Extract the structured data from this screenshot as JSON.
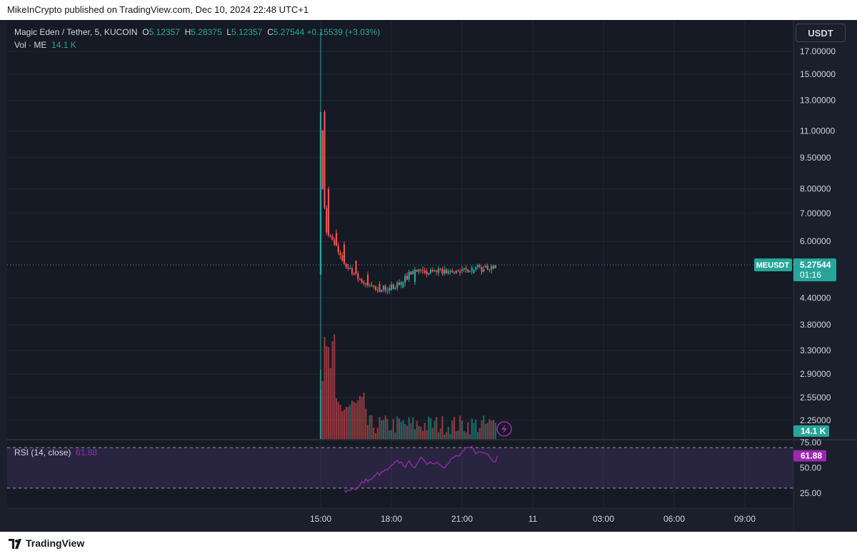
{
  "publisher_line": "MikeInCrypto published on TradingView.com, Dec 10, 2024 22:48 UTC+1",
  "legend": {
    "symbol": "Magic Eden / Tether, 5, KUCOIN",
    "o_label": "O",
    "o_value": "5.12357",
    "h_label": "H",
    "h_value": "5.28375",
    "l_label": "L",
    "l_value": "5.12357",
    "c_label": "C",
    "c_value": "5.27544",
    "change": "+0.15539 (+3.03%)",
    "vol_label": "Vol · ME",
    "vol_value": "14.1 K"
  },
  "rsi_legend": {
    "label": "RSI (14, close)",
    "value": "61.88"
  },
  "currency_button": "USDT",
  "price_badge": {
    "symbol": "MEUSDT",
    "price": "5.27544",
    "countdown": "01:16"
  },
  "volume_badge": "14.1 K",
  "rsi_badge": "61.88",
  "footer": {
    "brand": "TradingView"
  },
  "colors": {
    "up": "#26a69a",
    "down": "#ef5350",
    "rsi": "#9c27b0",
    "background": "#161a25"
  },
  "icons": {
    "logo": "tradingview-logo-icon",
    "lightning": "lightning-icon"
  },
  "chart_data": {
    "type": "candlestick",
    "symbol": "Magic Eden / Tether",
    "interval": "5",
    "exchange": "KUCOIN",
    "price_scale": "log",
    "price_ticks": [
      "17.00000",
      "15.00000",
      "13.00000",
      "11.00000",
      "9.50000",
      "8.00000",
      "7.00000",
      "6.00000",
      "4.40000",
      "3.80000",
      "3.30000",
      "2.90000",
      "2.55000",
      "2.25000"
    ],
    "time_ticks": [
      "15:00",
      "18:00",
      "21:00",
      "11",
      "03:00",
      "06:00",
      "09:00"
    ],
    "price_series_hourly": [
      {
        "time": "15:00",
        "open": 5.0,
        "high": 13.3,
        "low": 4.9,
        "close": 11.0
      },
      {
        "time": "15:05",
        "open": 11.0,
        "high": 12.6,
        "low": 10.4,
        "close": 12.2
      },
      {
        "time": "15:10",
        "open": 12.2,
        "high": 12.3,
        "low": 7.6,
        "close": 8.0
      },
      {
        "time": "15:20",
        "open": 8.0,
        "high": 8.2,
        "low": 6.1,
        "close": 6.3
      },
      {
        "time": "15:40",
        "open": 6.3,
        "high": 6.6,
        "low": 5.5,
        "close": 5.9
      },
      {
        "time": "16:00",
        "open": 5.9,
        "high": 6.1,
        "low": 5.2,
        "close": 5.4
      },
      {
        "time": "16:30",
        "open": 5.4,
        "high": 5.7,
        "low": 4.9,
        "close": 5.0
      },
      {
        "time": "17:00",
        "open": 5.0,
        "high": 5.1,
        "low": 4.55,
        "close": 4.75
      },
      {
        "time": "17:30",
        "open": 4.75,
        "high": 4.95,
        "low": 4.45,
        "close": 4.6
      },
      {
        "time": "18:00",
        "open": 4.6,
        "high": 4.8,
        "low": 4.5,
        "close": 4.65
      },
      {
        "time": "18:30",
        "open": 4.65,
        "high": 4.9,
        "low": 4.55,
        "close": 4.8
      },
      {
        "time": "19:00",
        "open": 4.8,
        "high": 5.2,
        "low": 4.75,
        "close": 5.1
      },
      {
        "time": "19:30",
        "open": 5.1,
        "high": 5.25,
        "low": 4.95,
        "close": 5.05
      },
      {
        "time": "20:00",
        "open": 5.05,
        "high": 5.15,
        "low": 4.95,
        "close": 5.08
      },
      {
        "time": "20:30",
        "open": 5.08,
        "high": 5.2,
        "low": 4.98,
        "close": 5.1
      },
      {
        "time": "21:00",
        "open": 5.1,
        "high": 5.2,
        "low": 5.0,
        "close": 5.05
      },
      {
        "time": "21:30",
        "open": 5.05,
        "high": 5.3,
        "low": 5.0,
        "close": 5.2
      },
      {
        "time": "22:00",
        "open": 5.2,
        "high": 5.3,
        "low": 5.08,
        "close": 5.15
      },
      {
        "time": "22:30",
        "open": 5.15,
        "high": 5.3,
        "low": 5.12,
        "close": 5.27544
      }
    ],
    "rsi": {
      "period": 14,
      "levels": [
        70,
        30
      ],
      "ticks": [
        "75.00",
        "50.00",
        "25.00"
      ],
      "last": 61.88
    },
    "volume_last": "14.1 K"
  }
}
